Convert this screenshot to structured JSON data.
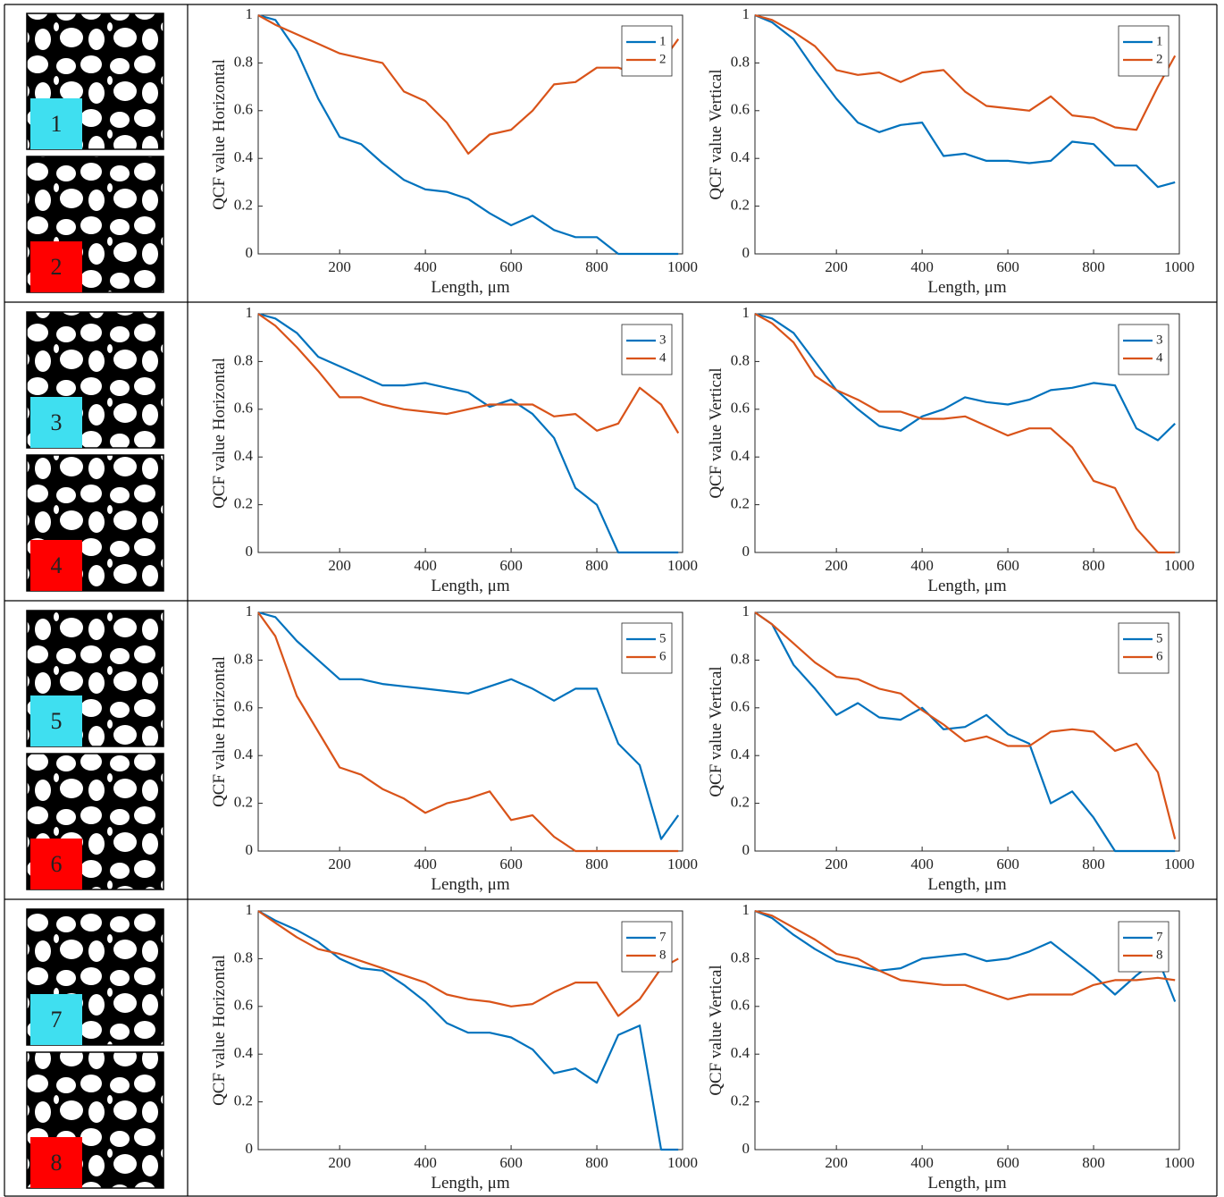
{
  "samples": [
    "1",
    "2",
    "3",
    "4",
    "5",
    "6",
    "7",
    "8"
  ],
  "chart_data": [
    {
      "type": "line",
      "x_label": "Length, μm",
      "y_label": "QCF value Horizontal",
      "xlim": [
        10,
        1000
      ],
      "ylim": [
        0,
        1
      ],
      "xticks": [
        200,
        400,
        600,
        800,
        1000
      ],
      "yticks": [
        0,
        0.2,
        0.4,
        0.6,
        0.8,
        1
      ],
      "legend": "upper right",
      "x": [
        10,
        50,
        100,
        150,
        200,
        250,
        300,
        350,
        400,
        450,
        500,
        550,
        600,
        650,
        700,
        750,
        800,
        850,
        900,
        950,
        990
      ],
      "series": [
        {
          "name": "1",
          "color": "#0072bd",
          "values": [
            1,
            0.98,
            0.85,
            0.65,
            0.49,
            0.46,
            0.38,
            0.31,
            0.27,
            0.26,
            0.23,
            0.17,
            0.12,
            0.16,
            0.1,
            0.07,
            0.07,
            0,
            0,
            0,
            0
          ]
        },
        {
          "name": "2",
          "color": "#d95319",
          "values": [
            1,
            0.96,
            0.92,
            0.88,
            0.84,
            0.82,
            0.8,
            0.68,
            0.64,
            0.55,
            0.42,
            0.5,
            0.52,
            0.6,
            0.71,
            0.72,
            0.78,
            0.78,
            0.75,
            0.8,
            0.9
          ]
        }
      ]
    },
    {
      "type": "line",
      "x_label": "Length, μm",
      "y_label": "QCF value Vertical",
      "xlim": [
        10,
        1000
      ],
      "ylim": [
        0,
        1
      ],
      "xticks": [
        200,
        400,
        600,
        800,
        1000
      ],
      "yticks": [
        0,
        0.2,
        0.4,
        0.6,
        0.8,
        1
      ],
      "legend": "upper right",
      "x": [
        10,
        50,
        100,
        150,
        200,
        250,
        300,
        350,
        400,
        450,
        500,
        550,
        600,
        650,
        700,
        750,
        800,
        850,
        900,
        950,
        990
      ],
      "series": [
        {
          "name": "1",
          "color": "#0072bd",
          "values": [
            1,
            0.97,
            0.9,
            0.77,
            0.65,
            0.55,
            0.51,
            0.54,
            0.55,
            0.41,
            0.42,
            0.39,
            0.39,
            0.38,
            0.39,
            0.47,
            0.46,
            0.37,
            0.37,
            0.28,
            0.3
          ]
        },
        {
          "name": "2",
          "color": "#d95319",
          "values": [
            1,
            0.98,
            0.93,
            0.87,
            0.77,
            0.75,
            0.76,
            0.72,
            0.76,
            0.77,
            0.68,
            0.62,
            0.61,
            0.6,
            0.66,
            0.58,
            0.57,
            0.53,
            0.52,
            0.7,
            0.83
          ]
        }
      ]
    },
    {
      "type": "line",
      "x_label": "Length, μm",
      "y_label": "QCF value Horizontal",
      "xlim": [
        10,
        1000
      ],
      "ylim": [
        0,
        1
      ],
      "xticks": [
        200,
        400,
        600,
        800,
        1000
      ],
      "yticks": [
        0,
        0.2,
        0.4,
        0.6,
        0.8,
        1
      ],
      "legend": "upper right",
      "x": [
        10,
        50,
        100,
        150,
        200,
        250,
        300,
        350,
        400,
        450,
        500,
        550,
        600,
        650,
        700,
        750,
        800,
        850,
        900,
        950,
        990
      ],
      "series": [
        {
          "name": "3",
          "color": "#0072bd",
          "values": [
            1,
            0.98,
            0.92,
            0.82,
            0.78,
            0.74,
            0.7,
            0.7,
            0.71,
            0.69,
            0.67,
            0.61,
            0.64,
            0.58,
            0.48,
            0.27,
            0.2,
            0,
            0,
            0,
            0
          ]
        },
        {
          "name": "4",
          "color": "#d95319",
          "values": [
            1,
            0.95,
            0.86,
            0.76,
            0.65,
            0.65,
            0.62,
            0.6,
            0.59,
            0.58,
            0.6,
            0.62,
            0.62,
            0.62,
            0.57,
            0.58,
            0.51,
            0.54,
            0.69,
            0.62,
            0.5
          ]
        }
      ]
    },
    {
      "type": "line",
      "x_label": "Length, μm",
      "y_label": "QCF value Vertical",
      "xlim": [
        10,
        1000
      ],
      "ylim": [
        0,
        1
      ],
      "xticks": [
        200,
        400,
        600,
        800,
        1000
      ],
      "yticks": [
        0,
        0.2,
        0.4,
        0.6,
        0.8,
        1
      ],
      "legend": "upper right",
      "x": [
        10,
        50,
        100,
        150,
        200,
        250,
        300,
        350,
        400,
        450,
        500,
        550,
        600,
        650,
        700,
        750,
        800,
        850,
        900,
        950,
        990
      ],
      "series": [
        {
          "name": "3",
          "color": "#0072bd",
          "values": [
            1,
            0.98,
            0.92,
            0.8,
            0.68,
            0.6,
            0.53,
            0.51,
            0.57,
            0.6,
            0.65,
            0.63,
            0.62,
            0.64,
            0.68,
            0.69,
            0.71,
            0.7,
            0.52,
            0.47,
            0.54
          ]
        },
        {
          "name": "4",
          "color": "#d95319",
          "values": [
            1,
            0.96,
            0.88,
            0.74,
            0.68,
            0.64,
            0.59,
            0.59,
            0.56,
            0.56,
            0.57,
            0.53,
            0.49,
            0.52,
            0.52,
            0.44,
            0.3,
            0.27,
            0.1,
            0,
            0
          ]
        }
      ]
    },
    {
      "type": "line",
      "x_label": "Length, μm",
      "y_label": "QCF value Horizontal",
      "xlim": [
        10,
        1000
      ],
      "ylim": [
        0,
        1
      ],
      "xticks": [
        200,
        400,
        600,
        800,
        1000
      ],
      "yticks": [
        0,
        0.2,
        0.4,
        0.6,
        0.8,
        1
      ],
      "legend": "upper right",
      "x": [
        10,
        50,
        100,
        150,
        200,
        250,
        300,
        350,
        400,
        450,
        500,
        550,
        600,
        650,
        700,
        750,
        800,
        850,
        900,
        950,
        990
      ],
      "series": [
        {
          "name": "5",
          "color": "#0072bd",
          "values": [
            1,
            0.98,
            0.88,
            0.8,
            0.72,
            0.72,
            0.7,
            0.69,
            0.68,
            0.67,
            0.66,
            0.69,
            0.72,
            0.68,
            0.63,
            0.68,
            0.68,
            0.45,
            0.36,
            0.05,
            0.15
          ]
        },
        {
          "name": "6",
          "color": "#d95319",
          "values": [
            1,
            0.9,
            0.65,
            0.5,
            0.35,
            0.32,
            0.26,
            0.22,
            0.16,
            0.2,
            0.22,
            0.25,
            0.13,
            0.15,
            0.06,
            0,
            0,
            0,
            0,
            0,
            0
          ]
        }
      ]
    },
    {
      "type": "line",
      "x_label": "Length, μm",
      "y_label": "QCF value Vertical",
      "xlim": [
        10,
        1000
      ],
      "ylim": [
        0,
        1
      ],
      "xticks": [
        200,
        400,
        600,
        800,
        1000
      ],
      "yticks": [
        0,
        0.2,
        0.4,
        0.6,
        0.8,
        1
      ],
      "legend": "upper right",
      "x": [
        10,
        50,
        100,
        150,
        200,
        250,
        300,
        350,
        400,
        450,
        500,
        550,
        600,
        650,
        700,
        750,
        800,
        850,
        900,
        950,
        990
      ],
      "series": [
        {
          "name": "5",
          "color": "#0072bd",
          "values": [
            1,
            0.95,
            0.78,
            0.68,
            0.57,
            0.62,
            0.56,
            0.55,
            0.6,
            0.51,
            0.52,
            0.57,
            0.49,
            0.45,
            0.2,
            0.25,
            0.14,
            0,
            0,
            0,
            0
          ]
        },
        {
          "name": "6",
          "color": "#d95319",
          "values": [
            1,
            0.95,
            0.87,
            0.79,
            0.73,
            0.72,
            0.68,
            0.66,
            0.59,
            0.53,
            0.46,
            0.48,
            0.44,
            0.44,
            0.5,
            0.51,
            0.5,
            0.42,
            0.45,
            0.33,
            0.05
          ]
        }
      ]
    },
    {
      "type": "line",
      "x_label": "Length, μm",
      "y_label": "QCF value Horizontal",
      "xlim": [
        10,
        1000
      ],
      "ylim": [
        0,
        1
      ],
      "xticks": [
        200,
        400,
        600,
        800,
        1000
      ],
      "yticks": [
        0,
        0.2,
        0.4,
        0.6,
        0.8,
        1
      ],
      "legend": "upper right",
      "x": [
        10,
        50,
        100,
        150,
        200,
        250,
        300,
        350,
        400,
        450,
        500,
        550,
        600,
        650,
        700,
        750,
        800,
        850,
        900,
        950,
        990
      ],
      "series": [
        {
          "name": "7",
          "color": "#0072bd",
          "values": [
            1,
            0.96,
            0.92,
            0.87,
            0.8,
            0.76,
            0.75,
            0.69,
            0.62,
            0.53,
            0.49,
            0.49,
            0.47,
            0.42,
            0.32,
            0.34,
            0.28,
            0.48,
            0.52,
            0,
            0
          ]
        },
        {
          "name": "8",
          "color": "#d95319",
          "values": [
            1,
            0.95,
            0.89,
            0.84,
            0.82,
            0.79,
            0.76,
            0.73,
            0.7,
            0.65,
            0.63,
            0.62,
            0.6,
            0.61,
            0.66,
            0.7,
            0.7,
            0.56,
            0.63,
            0.76,
            0.8
          ]
        }
      ]
    },
    {
      "type": "line",
      "x_label": "Length, μm",
      "y_label": "QCF value Vertical",
      "xlim": [
        10,
        1000
      ],
      "ylim": [
        0,
        1
      ],
      "xticks": [
        200,
        400,
        600,
        800,
        1000
      ],
      "yticks": [
        0,
        0.2,
        0.4,
        0.6,
        0.8,
        1
      ],
      "legend": "upper right",
      "x": [
        10,
        50,
        100,
        150,
        200,
        250,
        300,
        350,
        400,
        450,
        500,
        550,
        600,
        650,
        700,
        750,
        800,
        850,
        900,
        950,
        990
      ],
      "series": [
        {
          "name": "7",
          "color": "#0072bd",
          "values": [
            1,
            0.97,
            0.9,
            0.84,
            0.79,
            0.77,
            0.75,
            0.76,
            0.8,
            0.81,
            0.82,
            0.79,
            0.8,
            0.83,
            0.87,
            0.8,
            0.73,
            0.65,
            0.73,
            0.8,
            0.62
          ]
        },
        {
          "name": "8",
          "color": "#d95319",
          "values": [
            1,
            0.98,
            0.93,
            0.88,
            0.82,
            0.8,
            0.75,
            0.71,
            0.7,
            0.69,
            0.69,
            0.66,
            0.63,
            0.65,
            0.65,
            0.65,
            0.69,
            0.71,
            0.71,
            0.72,
            0.71
          ]
        }
      ]
    }
  ]
}
